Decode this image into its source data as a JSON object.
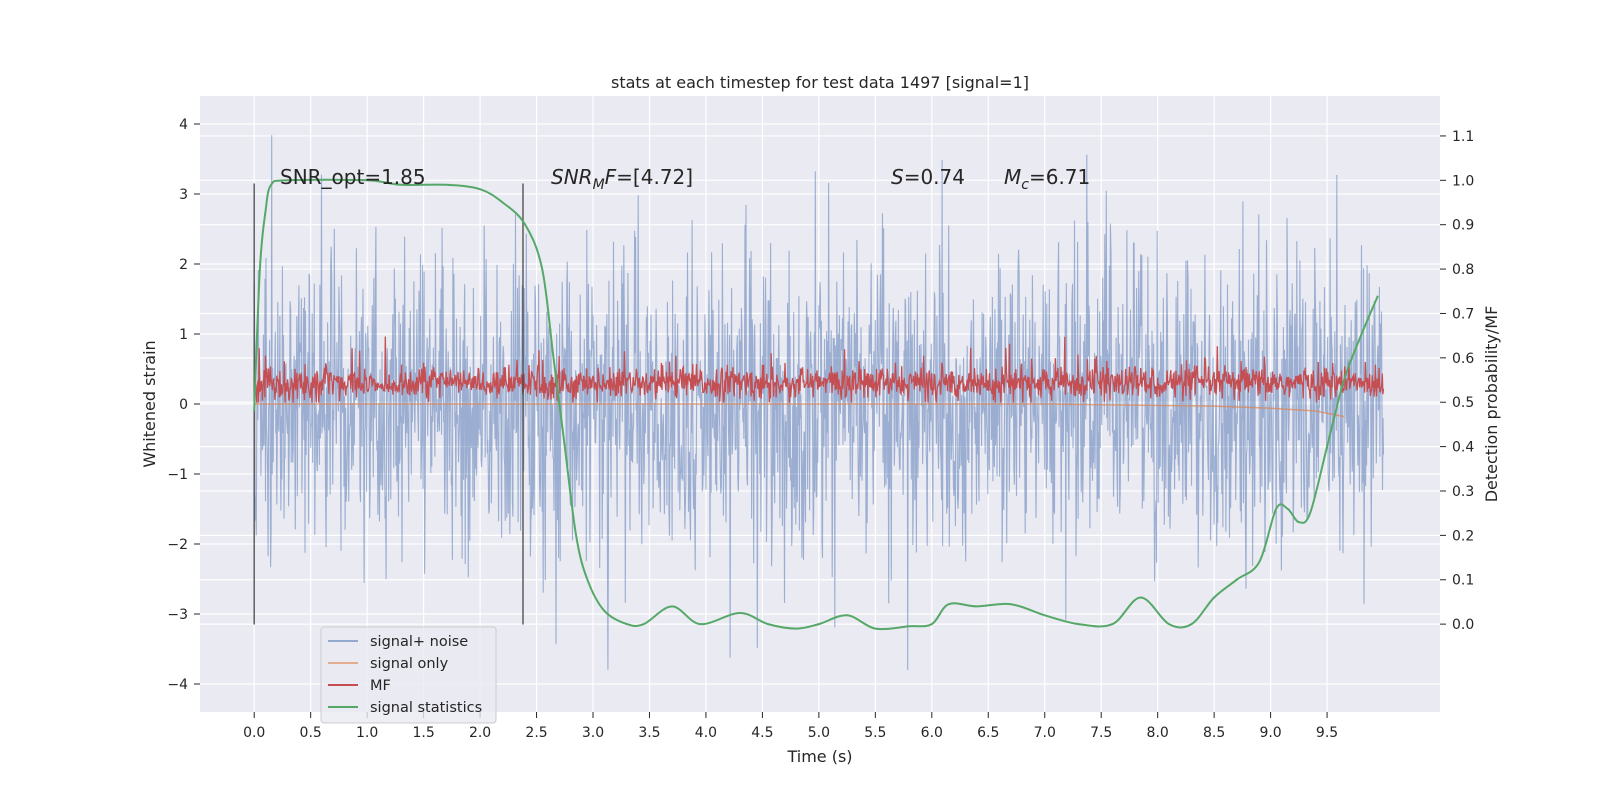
{
  "chart_data": {
    "type": "line",
    "title": "stats at each timestep for test data 1497 [signal=1]",
    "xlabel": "Time (s)",
    "ylabel": "Whitened strain",
    "ylabel_right": "Detection probability/MF",
    "xlim": [
      -0.48,
      10.5
    ],
    "ylim": [
      -4.4,
      4.4
    ],
    "ylim_right": [
      -0.198,
      1.19
    ],
    "x_ticks": [
      "0.0",
      "0.5",
      "1.0",
      "1.5",
      "2.0",
      "2.5",
      "3.0",
      "3.5",
      "4.0",
      "4.5",
      "5.0",
      "5.5",
      "6.0",
      "6.5",
      "7.0",
      "7.5",
      "8.0",
      "8.5",
      "9.0",
      "9.5"
    ],
    "y_ticks": [
      "4",
      "3",
      "2",
      "1",
      "0",
      "−1",
      "−2",
      "−3",
      "−4"
    ],
    "y_ticks_right": [
      "1.1",
      "1.0",
      "0.9",
      "0.8",
      "0.7",
      "0.6",
      "0.5",
      "0.4",
      "0.3",
      "0.2",
      "0.1",
      "0.0"
    ],
    "grid": true,
    "legend_position": "lower-left",
    "colors": {
      "signal_noise": "#4C72B0",
      "signal_only": "#DD8452",
      "mf": "#C44E52",
      "stats": "#55A868",
      "background": "#EAEAF2",
      "vline": "#444444"
    },
    "annotations": {
      "snr_opt": "SNR_opt=1.85",
      "snr_mf_main": "SNR",
      "snr_mf_sub": "M",
      "snr_mf_rest": "F=[4.72]",
      "s_italic": "S",
      "s_rest": "=0.74",
      "mc_italic": "M",
      "mc_sub": "c",
      "mc_rest": "=6.71"
    },
    "vertical_lines": [
      0.0,
      2.38
    ],
    "series": [
      {
        "name": "signal+ noise",
        "description_type": "noisy strain, range approx -3.8 to 4.0",
        "x_range": [
          0.0,
          10.0
        ]
      },
      {
        "name": "signal only",
        "x_range": [
          0.0,
          9.65
        ],
        "points": [
          [
            0.0,
            0.0
          ],
          [
            7.0,
            0.0
          ],
          [
            8.0,
            -0.02
          ],
          [
            8.5,
            -0.03
          ],
          [
            9.0,
            -0.06
          ],
          [
            9.4,
            -0.1
          ],
          [
            9.65,
            -0.18
          ]
        ]
      },
      {
        "name": "MF",
        "x_range": [
          0.0,
          10.0
        ],
        "baseline": 0.3
      },
      {
        "name": "signal statistics",
        "axis": "right",
        "points": [
          [
            0.0,
            0.48
          ],
          [
            0.05,
            0.8
          ],
          [
            0.1,
            0.93
          ],
          [
            0.15,
            0.99
          ],
          [
            0.3,
            1.0
          ],
          [
            1.0,
            1.0
          ],
          [
            1.3,
            0.99
          ],
          [
            1.7,
            0.99
          ],
          [
            2.0,
            0.98
          ],
          [
            2.2,
            0.95
          ],
          [
            2.4,
            0.9
          ],
          [
            2.55,
            0.8
          ],
          [
            2.65,
            0.6
          ],
          [
            2.75,
            0.4
          ],
          [
            2.85,
            0.2
          ],
          [
            2.95,
            0.1
          ],
          [
            3.1,
            0.03
          ],
          [
            3.3,
            0.0
          ],
          [
            3.45,
            0.0
          ],
          [
            3.7,
            0.04
          ],
          [
            3.95,
            0.0
          ],
          [
            4.3,
            0.025
          ],
          [
            4.55,
            0.0
          ],
          [
            4.8,
            -0.01
          ],
          [
            5.0,
            0.0
          ],
          [
            5.25,
            0.02
          ],
          [
            5.5,
            -0.01
          ],
          [
            5.8,
            -0.005
          ],
          [
            6.0,
            0.0
          ],
          [
            6.15,
            0.045
          ],
          [
            6.4,
            0.04
          ],
          [
            6.7,
            0.045
          ],
          [
            7.0,
            0.02
          ],
          [
            7.3,
            0.0
          ],
          [
            7.6,
            0.0
          ],
          [
            7.85,
            0.06
          ],
          [
            8.1,
            0.0
          ],
          [
            8.3,
            0.0
          ],
          [
            8.5,
            0.06
          ],
          [
            8.7,
            0.1
          ],
          [
            8.9,
            0.14
          ],
          [
            9.05,
            0.26
          ],
          [
            9.15,
            0.26
          ],
          [
            9.25,
            0.23
          ],
          [
            9.35,
            0.25
          ],
          [
            9.5,
            0.4
          ],
          [
            9.65,
            0.55
          ],
          [
            9.8,
            0.65
          ],
          [
            9.95,
            0.74
          ]
        ]
      }
    ]
  }
}
